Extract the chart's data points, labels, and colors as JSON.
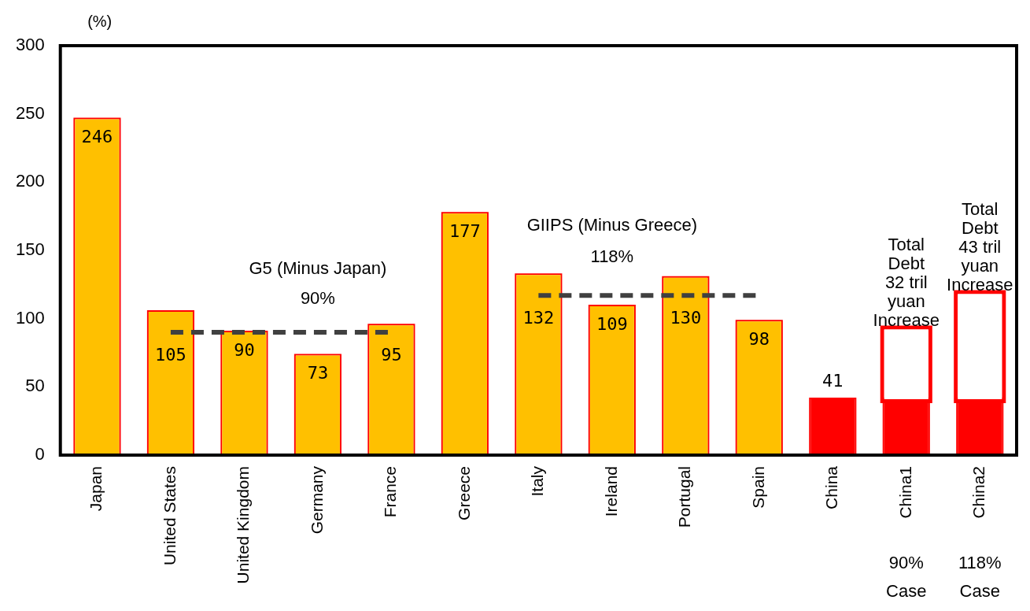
{
  "chart_data": {
    "type": "bar",
    "ylabel": "(%)",
    "stacked": true,
    "categories": [
      "Japan",
      "United States",
      "United Kingdom",
      "Germany",
      "France",
      "Greece",
      "Italy",
      "Ireland",
      "Portugal",
      "Spain",
      "China",
      "China1",
      "China2"
    ],
    "series": [
      {
        "colors": [
          "#ffc000",
          "#ffc000",
          "#ffc000",
          "#ffc000",
          "#ffc000",
          "#ffc000",
          "#ffc000",
          "#ffc000",
          "#ffc000",
          "#ffc000",
          "#ff0000",
          "#ff0000",
          "#ff0000"
        ],
        "values": [
          246,
          105,
          90,
          73,
          95,
          177,
          132,
          109,
          130,
          98,
          41,
          41,
          41
        ],
        "value_labels": [
          "246",
          "105",
          "90",
          "73",
          "95",
          "177",
          "132",
          "109",
          "130",
          "98",
          "41",
          null,
          null
        ]
      },
      {
        "color": "#ffffff",
        "values": [
          null,
          null,
          null,
          null,
          null,
          null,
          null,
          null,
          null,
          null,
          null,
          51,
          77
        ]
      },
      {
        "type": "line",
        "color": "#404040",
        "line_style": "dashed",
        "values": [
          null,
          90,
          90,
          90,
          90,
          null,
          null,
          null,
          null,
          null,
          null,
          null,
          null
        ]
      },
      {
        "type": "line",
        "color": "#404040",
        "line_style": "dashed",
        "values": [
          null,
          null,
          null,
          null,
          null,
          null,
          117,
          117,
          117,
          117,
          null,
          null,
          null
        ]
      }
    ],
    "ylim": [
      0,
      300
    ],
    "yticks": [
      0,
      50,
      100,
      150,
      200,
      250,
      300
    ],
    "grid": false,
    "legend": false,
    "annotations": [
      "G5 (Minus Japan)",
      "90%",
      "GIIPS (Minus Greece)",
      "118%",
      "Total\nDebt\n32 tril\nyuan\nIncrease",
      "Total\nDebt\n43 tril\nyuan\nIncrease",
      "90%\nCase",
      "118%\nCase"
    ]
  }
}
